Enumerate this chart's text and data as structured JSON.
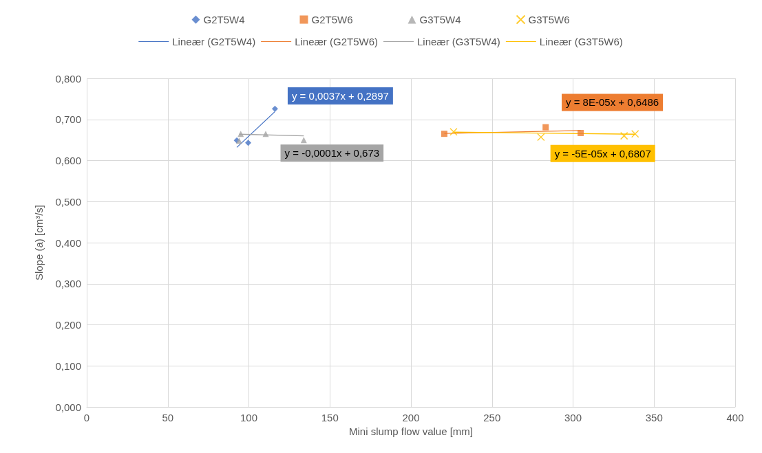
{
  "chart_data": {
    "type": "scatter",
    "xlabel": "Mini slump flow value [mm]",
    "ylabel": "Slope (a) [cm³/s]",
    "xlim": [
      0,
      400
    ],
    "xticks": [
      0,
      50,
      100,
      150,
      200,
      250,
      300,
      350,
      400
    ],
    "ylim": [
      0,
      0.8
    ],
    "yticks": [
      {
        "value": 0,
        "label": "0,000"
      },
      {
        "value": 0.1,
        "label": "0,100"
      },
      {
        "value": 0.2,
        "label": "0,200"
      },
      {
        "value": 0.3,
        "label": "0,300"
      },
      {
        "value": 0.4,
        "label": "0,400"
      },
      {
        "value": 0.5,
        "label": "0,500"
      },
      {
        "value": 0.6,
        "label": "0,600"
      },
      {
        "value": 0.7,
        "label": "0,700"
      },
      {
        "value": 0.8,
        "label": "0,800"
      }
    ],
    "grid": true,
    "legend": "top",
    "series": [
      {
        "name": "G2T5W4",
        "marker": "diamond",
        "color": "#4472c4",
        "x": [
          92.6,
          99.6,
          116.1
        ],
        "values": [
          0.649,
          0.643,
          0.726
        ]
      },
      {
        "name": "G2T5W6",
        "marker": "square",
        "color": "#ed7d31",
        "x": [
          220.6,
          283.1,
          304.7
        ],
        "values": [
          0.665,
          0.681,
          0.667
        ]
      },
      {
        "name": "G3T5W4",
        "marker": "triangle",
        "color": "#a5a5a5",
        "x": [
          94,
          95,
          110.4,
          133.9
        ],
        "values": [
          0.648,
          0.665,
          0.665,
          0.65
        ]
      },
      {
        "name": "G3T5W6",
        "marker": "cross",
        "color": "#ffc000",
        "x": [
          226.3,
          280.2,
          331.5,
          338.3
        ],
        "values": [
          0.67,
          0.657,
          0.66,
          0.665
        ]
      },
      {
        "name": "Lineær (G2T5W4)",
        "type": "line",
        "marker": "none",
        "color": "#4472c4",
        "x": [
          92.6,
          116.1
        ],
        "values": [
          0.632,
          0.719
        ]
      },
      {
        "name": "Lineær (G2T5W6)",
        "type": "line",
        "marker": "none",
        "color": "#ed7d31",
        "x": [
          220.6,
          304.7
        ],
        "values": [
          0.666,
          0.673
        ]
      },
      {
        "name": "Lineær (G3T5W4)",
        "type": "line",
        "marker": "none",
        "color": "#a5a5a5",
        "x": [
          94,
          133.9
        ],
        "values": [
          0.664,
          0.66
        ]
      },
      {
        "name": "Lineær (G3T5W6)",
        "type": "line",
        "marker": "none",
        "color": "#ffc000",
        "x": [
          226.3,
          338.3
        ],
        "values": [
          0.669,
          0.664
        ]
      }
    ],
    "annotations": [
      "y = 0,0037x + 0,2897",
      "y = 8E-05x + 0,6486",
      "y = -0,0001x + 0,673",
      "y = -5E-05x + 0,6807"
    ]
  }
}
